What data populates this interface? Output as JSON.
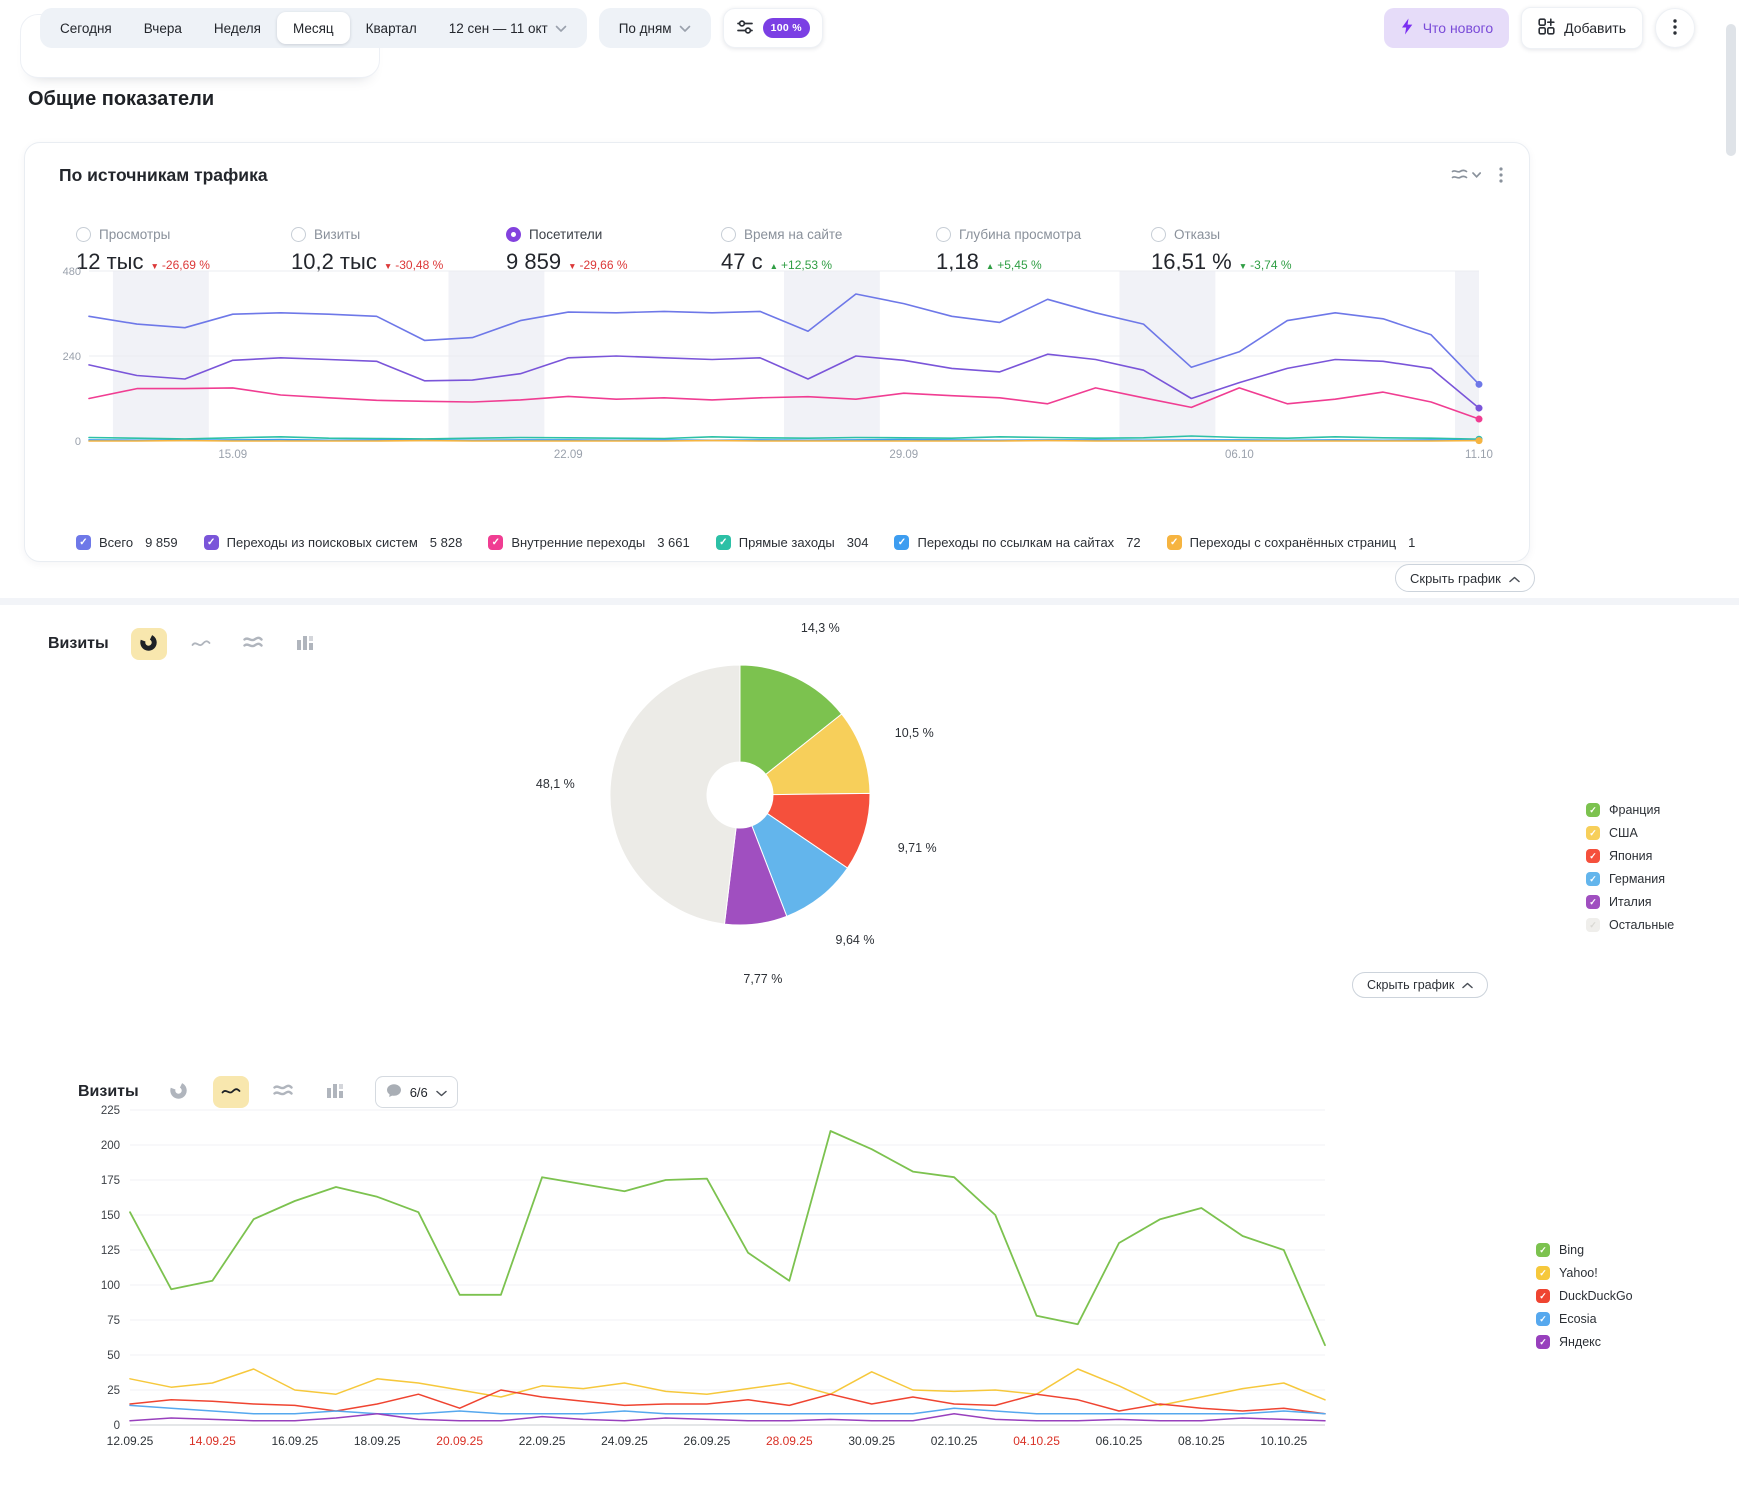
{
  "toolbar": {
    "tabs": [
      "Сегодня",
      "Вчера",
      "Неделя",
      "Месяц",
      "Квартал"
    ],
    "active_tab": "Месяц",
    "date_range": "12 сен — 11 окт",
    "granularity": "По дням",
    "sampling": "100 %",
    "whats_new": "Что нового",
    "add": "Добавить"
  },
  "page_title": "Общие показатели",
  "controls": {
    "hide_chart": "Скрыть график"
  },
  "traffic_card": {
    "title": "По источникам трафика",
    "metrics": [
      {
        "label": "Просмотры",
        "value": "12 тыс",
        "arrow": "▼",
        "delta": "-26,69 %",
        "color": "red",
        "selected": false
      },
      {
        "label": "Визиты",
        "value": "10,2 тыс",
        "arrow": "▼",
        "delta": "-30,48 %",
        "color": "red",
        "selected": false
      },
      {
        "label": "Посетители",
        "value": "9 859",
        "arrow": "▼",
        "delta": "-29,66 %",
        "color": "red",
        "selected": true
      },
      {
        "label": "Время на сайте",
        "value": "47 с",
        "arrow": "▲",
        "delta": "+12,53 %",
        "color": "green",
        "selected": false
      },
      {
        "label": "Глубина просмотра",
        "value": "1,18",
        "arrow": "▲",
        "delta": "+5,45 %",
        "color": "green",
        "selected": false
      },
      {
        "label": "Отказы",
        "value": "16,51 %",
        "arrow": "▼",
        "delta": "-3,74 %",
        "color": "green",
        "selected": false
      }
    ]
  },
  "sections": {
    "pie": {
      "title": "Визиты"
    },
    "engines": {
      "title": "Визиты",
      "selector": "6/6"
    }
  },
  "chart_data": [
    {
      "id": "traffic-sources-by-day",
      "type": "line",
      "title": "По источникам трафика",
      "period": "12.09 — 11.10",
      "ylim": [
        0,
        480
      ],
      "yticks": [
        480,
        240,
        0
      ],
      "x_labels": [
        "15.09",
        "22.09",
        "29.09",
        "06.10",
        "11.10"
      ],
      "x_label_days": [
        3,
        10,
        17,
        24,
        29
      ],
      "weekend_bands": [
        [
          1,
          2
        ],
        [
          8,
          9
        ],
        [
          15,
          16
        ],
        [
          22,
          23
        ],
        [
          29,
          30
        ]
      ],
      "grid": true,
      "legend_position": "bottom",
      "series": [
        {
          "name": "Всего",
          "legend_value": "9 859",
          "color": "#6e78e8",
          "values": [
            352,
            330,
            320,
            358,
            362,
            358,
            352,
            284,
            292,
            340,
            364,
            362,
            366,
            362,
            366,
            310,
            415,
            388,
            352,
            335,
            400,
            362,
            330,
            208,
            252,
            340,
            362,
            345,
            300,
            160
          ]
        },
        {
          "name": "Переходы из поисковых систем",
          "legend_value": "5 828",
          "color": "#7a55d9",
          "values": [
            215,
            185,
            175,
            228,
            235,
            230,
            225,
            170,
            172,
            190,
            235,
            240,
            235,
            230,
            235,
            175,
            240,
            228,
            205,
            195,
            245,
            230,
            200,
            120,
            165,
            205,
            230,
            225,
            205,
            93
          ]
        },
        {
          "name": "Внутренние переходы",
          "legend_value": "3 661",
          "color": "#f03d92",
          "values": [
            120,
            148,
            148,
            150,
            130,
            122,
            115,
            112,
            110,
            116,
            126,
            118,
            122,
            116,
            122,
            125,
            118,
            135,
            128,
            122,
            105,
            150,
            122,
            95,
            150,
            105,
            118,
            138,
            110,
            62
          ]
        },
        {
          "name": "Прямые заходы",
          "legend_value": "304",
          "color": "#2cc0a6",
          "values": [
            10,
            8,
            6,
            9,
            12,
            8,
            7,
            6,
            8,
            10,
            9,
            8,
            7,
            12,
            9,
            8,
            10,
            9,
            8,
            12,
            10,
            8,
            9,
            14,
            10,
            8,
            12,
            9,
            8,
            5
          ]
        },
        {
          "name": "Переходы по ссылкам на сайтах",
          "legend_value": "72",
          "color": "#3d9df0",
          "values": [
            3,
            2,
            2,
            3,
            4,
            2,
            3,
            2,
            2,
            3,
            3,
            2,
            3,
            2,
            3,
            2,
            3,
            4,
            3,
            2,
            3,
            3,
            2,
            3,
            3,
            2,
            3,
            2,
            3,
            2
          ]
        },
        {
          "name": "Переходы с сохранённых страниц",
          "legend_value": "1",
          "color": "#f6b440",
          "values": [
            0,
            0,
            1,
            0,
            0,
            0,
            0,
            1,
            0,
            0,
            0,
            0,
            0,
            1,
            0,
            0,
            0,
            0,
            0,
            0,
            1,
            0,
            0,
            0,
            0,
            0,
            0,
            0,
            0,
            1
          ]
        }
      ]
    },
    {
      "id": "visits-by-country",
      "type": "pie",
      "title": "Визиты",
      "legend_position": "right",
      "slices": [
        {
          "label": "Франция",
          "value": 14.3,
          "display": "14,3 %",
          "color": "#7cc24f"
        },
        {
          "label": "США",
          "value": 10.5,
          "display": "10,5 %",
          "color": "#f7cf5a"
        },
        {
          "label": "Япония",
          "value": 9.71,
          "display": "9,71 %",
          "color": "#f5503c"
        },
        {
          "label": "Германия",
          "value": 9.64,
          "display": "9,64 %",
          "color": "#63b5ec"
        },
        {
          "label": "Италия",
          "value": 7.77,
          "display": "7,77 %",
          "color": "#a04fc0"
        },
        {
          "label": "Остальные",
          "value": 48.1,
          "display": "48,1 %",
          "color": "#ecebe7",
          "muted": true
        }
      ]
    },
    {
      "id": "visits-by-search-engine",
      "type": "line",
      "title": "Визиты",
      "ylim": [
        0,
        225
      ],
      "ytick_step": 25,
      "grid": true,
      "legend_position": "right",
      "x_labels": [
        "12.09.25",
        "14.09.25",
        "16.09.25",
        "18.09.25",
        "20.09.25",
        "22.09.25",
        "24.09.25",
        "26.09.25",
        "28.09.25",
        "30.09.25",
        "02.10.25",
        "04.10.25",
        "06.10.25",
        "08.10.25",
        "10.10.25"
      ],
      "red_x_label_indexes": [
        1,
        4,
        8,
        11
      ],
      "series": [
        {
          "name": "Bing",
          "color": "#7cc24f",
          "values": [
            152,
            97,
            103,
            147,
            160,
            170,
            163,
            152,
            93,
            93,
            177,
            172,
            167,
            175,
            176,
            123,
            103,
            210,
            197,
            181,
            177,
            150,
            78,
            72,
            130,
            147,
            155,
            135,
            125,
            57
          ]
        },
        {
          "name": "Yahoo!",
          "color": "#f6c83c",
          "values": [
            33,
            27,
            30,
            40,
            25,
            22,
            33,
            30,
            25,
            20,
            28,
            26,
            30,
            24,
            22,
            26,
            30,
            22,
            38,
            25,
            24,
            25,
            22,
            40,
            28,
            14,
            20,
            26,
            30,
            18
          ]
        },
        {
          "name": "DuckDuckGo",
          "color": "#ef4431",
          "values": [
            15,
            18,
            17,
            15,
            14,
            10,
            15,
            22,
            12,
            25,
            20,
            17,
            14,
            15,
            15,
            18,
            14,
            22,
            15,
            20,
            15,
            14,
            22,
            18,
            10,
            15,
            12,
            10,
            12,
            8
          ]
        },
        {
          "name": "Ecosia",
          "color": "#56a8ee",
          "values": [
            14,
            12,
            10,
            8,
            8,
            10,
            8,
            8,
            10,
            8,
            8,
            8,
            10,
            8,
            8,
            8,
            8,
            8,
            8,
            8,
            12,
            10,
            8,
            8,
            8,
            8,
            8,
            8,
            10,
            8
          ]
        },
        {
          "name": "Яндекс",
          "color": "#9840bd",
          "values": [
            3,
            5,
            4,
            3,
            3,
            5,
            8,
            4,
            3,
            3,
            6,
            4,
            3,
            5,
            4,
            3,
            3,
            4,
            3,
            3,
            8,
            4,
            3,
            3,
            4,
            3,
            3,
            5,
            4,
            3
          ]
        }
      ]
    }
  ]
}
